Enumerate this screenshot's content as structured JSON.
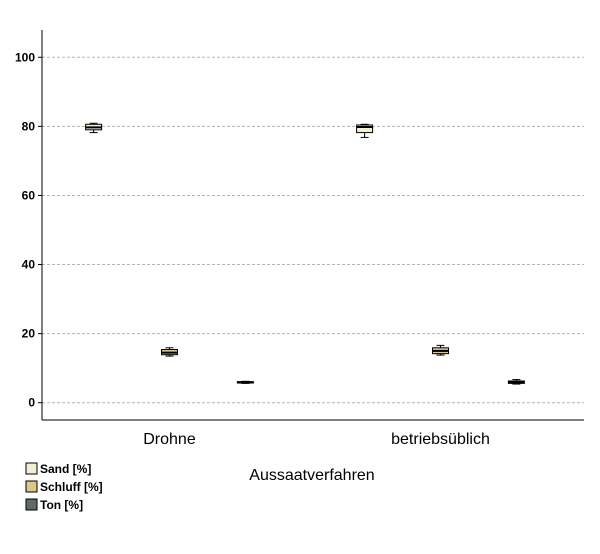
{
  "chart_data": {
    "type": "boxplot",
    "title": "",
    "xlabel": "Aussaatverfahren",
    "ylabel": "",
    "ylim": [
      -5,
      105
    ],
    "yticks": [
      0,
      20,
      40,
      60,
      80,
      100
    ],
    "grid": true,
    "legend_position": "bottom-left",
    "categories": [
      "Drohne",
      "betriebsüblich"
    ],
    "series": [
      {
        "name": "Sand [%]",
        "color": "#f3efd5",
        "boxes": [
          {
            "min": 78.2,
            "q1": 79.0,
            "median": 79.7,
            "q3": 80.6,
            "max": 80.9
          },
          {
            "min": 76.8,
            "q1": 78.2,
            "median": 79.8,
            "q3": 80.4,
            "max": 80.6
          }
        ]
      },
      {
        "name": "Schluff [%]",
        "color": "#d9c98a",
        "boxes": [
          {
            "min": 13.5,
            "q1": 13.9,
            "median": 14.5,
            "q3": 15.4,
            "max": 15.9
          },
          {
            "min": 13.8,
            "q1": 14.2,
            "median": 15.0,
            "q3": 15.9,
            "max": 16.6
          }
        ]
      },
      {
        "name": "Ton [%]",
        "color": "#5d6c66",
        "boxes": [
          {
            "min": 5.6,
            "q1": 5.7,
            "median": 5.9,
            "q3": 6.1,
            "max": 6.2
          },
          {
            "min": 5.4,
            "q1": 5.6,
            "median": 5.9,
            "q3": 6.3,
            "max": 6.7
          }
        ]
      }
    ]
  }
}
